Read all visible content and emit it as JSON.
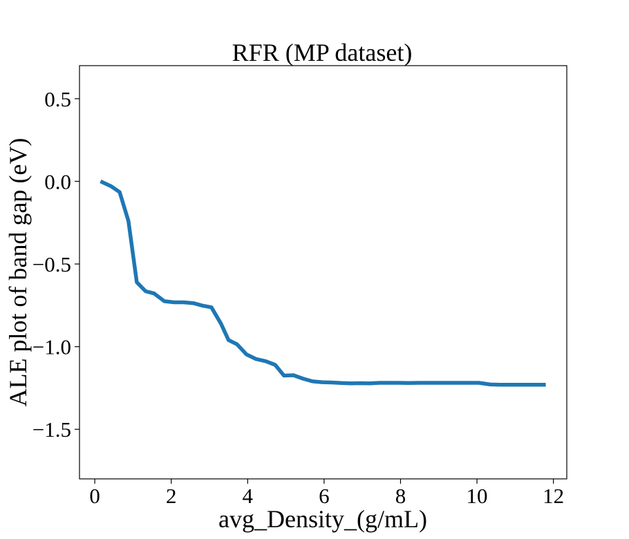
{
  "chart_data": {
    "type": "line",
    "title": "RFR (MP dataset)",
    "xlabel": "avg_Density_(g/mL)",
    "ylabel": "ALE plot of band gap (eV)",
    "xlim": [
      -0.4,
      12.35
    ],
    "ylim": [
      -1.8,
      0.7
    ],
    "xticks": [
      0,
      2,
      4,
      6,
      8,
      10,
      12
    ],
    "xtick_labels": [
      "0",
      "2",
      "4",
      "6",
      "8",
      "10",
      "12"
    ],
    "yticks": [
      0.5,
      0.0,
      -0.5,
      -1.0,
      -1.5
    ],
    "ytick_labels": [
      "0.5",
      "0.0",
      "−0.5",
      "−1.0",
      "−1.5"
    ],
    "grid": false,
    "legend": "none",
    "color": "#1f77b4",
    "series": [
      {
        "x": [
          0.15,
          0.43,
          0.65,
          0.88,
          1.1,
          1.33,
          1.55,
          1.82,
          2.08,
          2.33,
          2.58,
          2.82,
          3.05,
          3.3,
          3.5,
          3.72,
          3.97,
          4.22,
          4.47,
          4.72,
          4.95,
          5.2,
          5.45,
          5.7,
          5.95,
          6.2,
          6.45,
          6.7,
          6.95,
          7.2,
          7.45,
          7.7,
          7.95,
          8.2,
          8.5,
          8.8,
          9.1,
          9.4,
          9.7,
          10.05,
          10.35,
          10.6,
          10.85,
          11.1,
          11.35,
          11.6,
          11.8
        ],
        "y": [
          0.0,
          -0.03,
          -0.065,
          -0.24,
          -0.61,
          -0.665,
          -0.678,
          -0.725,
          -0.732,
          -0.732,
          -0.737,
          -0.752,
          -0.762,
          -0.86,
          -0.96,
          -0.985,
          -1.047,
          -1.075,
          -1.088,
          -1.11,
          -1.175,
          -1.173,
          -1.194,
          -1.21,
          -1.215,
          -1.217,
          -1.22,
          -1.222,
          -1.221,
          -1.222,
          -1.219,
          -1.219,
          -1.219,
          -1.22,
          -1.219,
          -1.219,
          -1.219,
          -1.219,
          -1.219,
          -1.219,
          -1.229,
          -1.23,
          -1.23,
          -1.23,
          -1.23,
          -1.23,
          -1.23
        ]
      }
    ]
  }
}
